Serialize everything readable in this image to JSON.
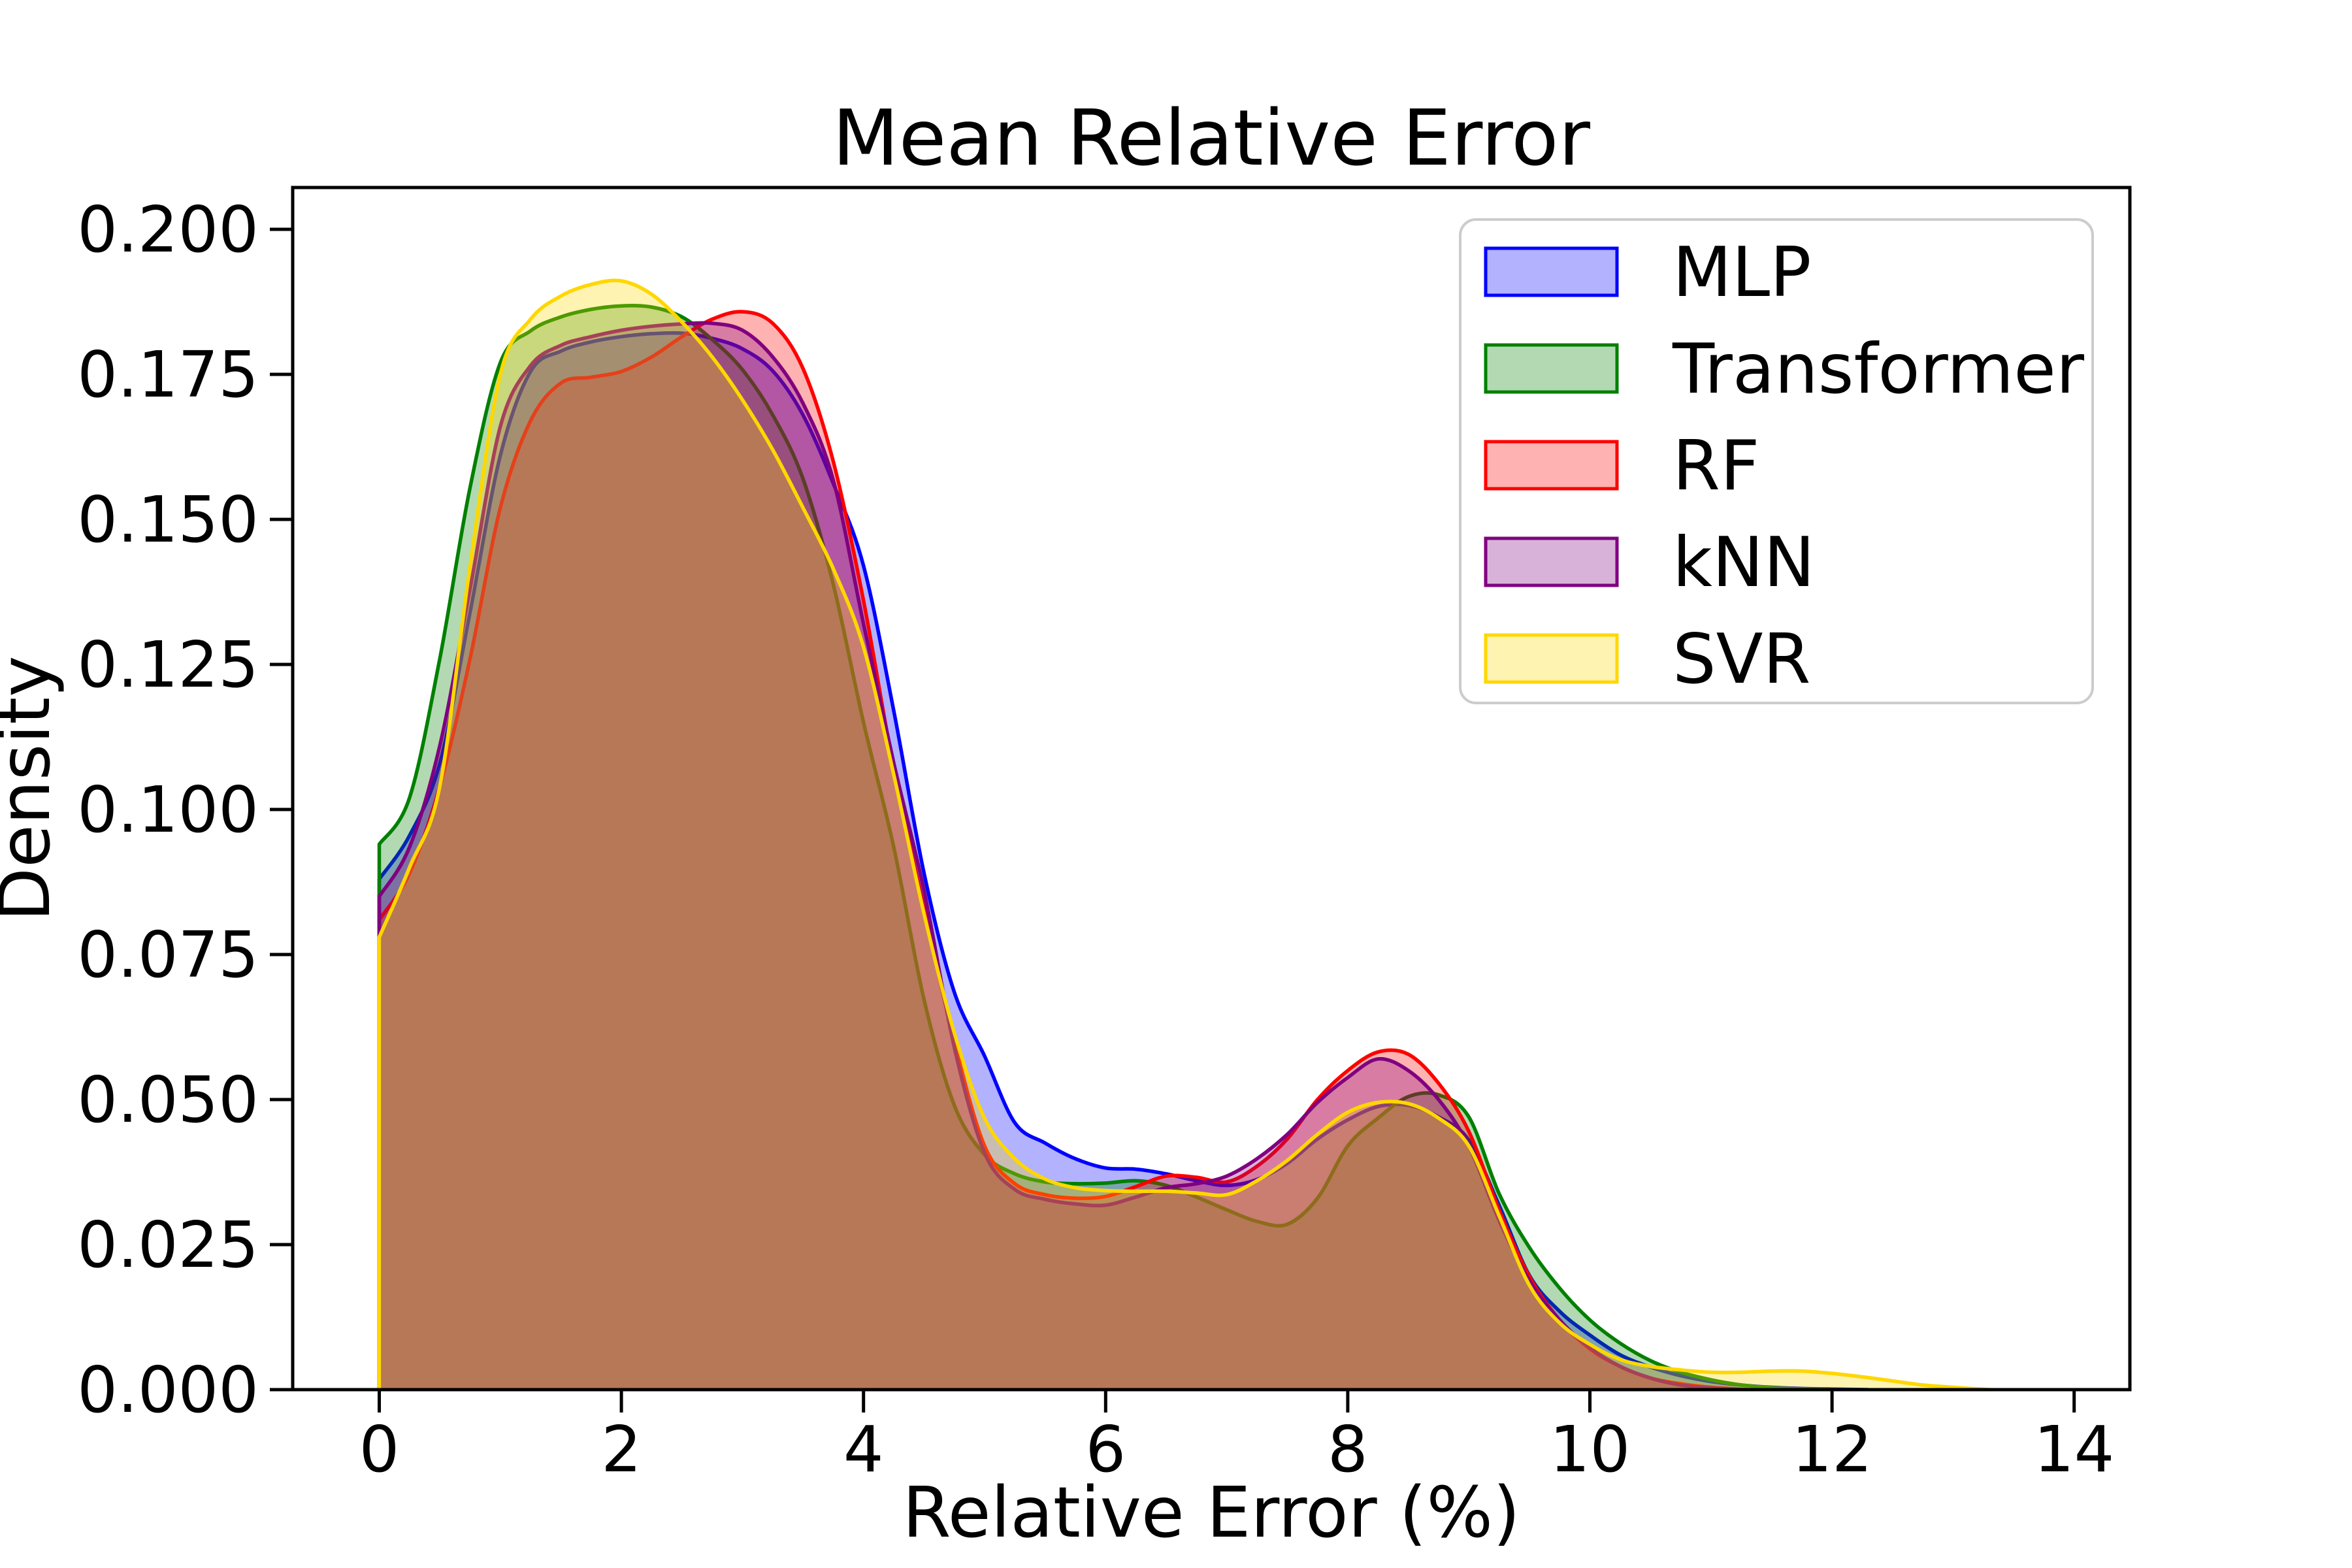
{
  "figure": {
    "background": "#ffffff",
    "spine_color": "#000000",
    "legend_border_color": "#cccccc",
    "legend_background": "#ffffff"
  },
  "chart_data": {
    "type": "area",
    "kind": "kde-density-overlay",
    "title": "Mean Relative Error",
    "xlabel": "Relative Error (%)",
    "ylabel": "Density",
    "grid": false,
    "legend_position": "upper right",
    "xlim": [
      -0.71,
      14.46
    ],
    "ylim": [
      0,
      0.2072
    ],
    "fill_alpha": 0.3,
    "x_ticks": {
      "values": [
        0,
        2,
        4,
        6,
        8,
        10,
        12,
        14
      ],
      "labels": [
        "0",
        "2",
        "4",
        "6",
        "8",
        "10",
        "12",
        "14"
      ]
    },
    "y_ticks": {
      "values": [
        0.0,
        0.025,
        0.05,
        0.075,
        0.1,
        0.125,
        0.15,
        0.175,
        0.2
      ],
      "labels": [
        "0.000",
        "0.025",
        "0.050",
        "0.075",
        "0.100",
        "0.125",
        "0.150",
        "0.175",
        "0.200"
      ]
    },
    "series": [
      {
        "name": "MLP",
        "color": "#0000ff",
        "points": [
          [
            0,
            0.088
          ],
          [
            0.25,
            0.0955
          ],
          [
            0.5,
            0.108
          ],
          [
            0.75,
            0.134
          ],
          [
            1,
            0.161
          ],
          [
            1.25,
            0.1755
          ],
          [
            1.5,
            0.179
          ],
          [
            1.75,
            0.1806
          ],
          [
            2,
            0.1815
          ],
          [
            2.25,
            0.182
          ],
          [
            2.5,
            0.1821
          ],
          [
            2.75,
            0.1812
          ],
          [
            3,
            0.1794
          ],
          [
            3.25,
            0.1756
          ],
          [
            3.5,
            0.168
          ],
          [
            3.75,
            0.1562
          ],
          [
            4,
            0.142
          ],
          [
            4.25,
            0.117
          ],
          [
            4.5,
            0.089
          ],
          [
            4.75,
            0.0685
          ],
          [
            5,
            0.0575
          ],
          [
            5.25,
            0.046
          ],
          [
            5.5,
            0.0425
          ],
          [
            5.75,
            0.0398
          ],
          [
            6,
            0.0382
          ],
          [
            6.25,
            0.038
          ],
          [
            6.5,
            0.0372
          ],
          [
            6.75,
            0.036
          ],
          [
            7,
            0.0352
          ],
          [
            7.25,
            0.0362
          ],
          [
            7.5,
            0.039
          ],
          [
            7.75,
            0.0432
          ],
          [
            8,
            0.0465
          ],
          [
            8.25,
            0.0488
          ],
          [
            8.5,
            0.049
          ],
          [
            8.75,
            0.047
          ],
          [
            9,
            0.043
          ],
          [
            9.25,
            0.0318
          ],
          [
            9.5,
            0.0197
          ],
          [
            9.75,
            0.0135
          ],
          [
            10,
            0.0094
          ],
          [
            10.25,
            0.006
          ],
          [
            10.5,
            0.0039
          ],
          [
            10.75,
            0.0024
          ],
          [
            11,
            0.0014
          ],
          [
            11.25,
            0.0008
          ],
          [
            11.5,
            0.0004
          ],
          [
            11.75,
            0.0002
          ],
          [
            12,
            0.0001
          ],
          [
            12.3,
            0
          ]
        ]
      },
      {
        "name": "Transformer",
        "color": "#008000",
        "points": [
          [
            0,
            0.094
          ],
          [
            0.25,
            0.102
          ],
          [
            0.5,
            0.126
          ],
          [
            0.75,
            0.1555
          ],
          [
            1,
            0.177
          ],
          [
            1.25,
            0.1825
          ],
          [
            1.5,
            0.1849
          ],
          [
            1.75,
            0.1862
          ],
          [
            2,
            0.1868
          ],
          [
            2.25,
            0.1866
          ],
          [
            2.5,
            0.1849
          ],
          [
            2.75,
            0.181
          ],
          [
            3,
            0.1758
          ],
          [
            3.25,
            0.168
          ],
          [
            3.5,
            0.157
          ],
          [
            3.75,
            0.1388
          ],
          [
            4,
            0.115
          ],
          [
            4.25,
            0.0935
          ],
          [
            4.5,
            0.0672
          ],
          [
            4.75,
            0.049
          ],
          [
            5,
            0.0405
          ],
          [
            5.25,
            0.0372
          ],
          [
            5.5,
            0.0358
          ],
          [
            5.75,
            0.0355
          ],
          [
            6,
            0.0356
          ],
          [
            6.25,
            0.036
          ],
          [
            6.5,
            0.0352
          ],
          [
            6.75,
            0.0332
          ],
          [
            7,
            0.031
          ],
          [
            7.25,
            0.029
          ],
          [
            7.5,
            0.0285
          ],
          [
            7.75,
            0.033
          ],
          [
            8,
            0.042
          ],
          [
            8.25,
            0.0468
          ],
          [
            8.5,
            0.0505
          ],
          [
            8.75,
            0.0508
          ],
          [
            9,
            0.047
          ],
          [
            9.25,
            0.0338
          ],
          [
            9.5,
            0.0245
          ],
          [
            9.75,
            0.0175
          ],
          [
            10,
            0.012
          ],
          [
            10.25,
            0.008
          ],
          [
            10.5,
            0.005
          ],
          [
            10.75,
            0.003
          ],
          [
            11,
            0.0017
          ],
          [
            11.25,
            0.0008
          ],
          [
            11.5,
            0.0003
          ],
          [
            11.75,
            0.0001
          ],
          [
            12,
            0
          ]
        ]
      },
      {
        "name": "RF",
        "color": "#ff0000",
        "points": [
          [
            0,
            0.081
          ],
          [
            0.25,
            0.089
          ],
          [
            0.5,
            0.104
          ],
          [
            0.75,
            0.126
          ],
          [
            1,
            0.152
          ],
          [
            1.25,
            0.167
          ],
          [
            1.5,
            0.1735
          ],
          [
            1.75,
            0.1745
          ],
          [
            2,
            0.1755
          ],
          [
            2.25,
            0.178
          ],
          [
            2.5,
            0.1815
          ],
          [
            2.75,
            0.1845
          ],
          [
            3,
            0.1858
          ],
          [
            3.25,
            0.1838
          ],
          [
            3.5,
            0.176
          ],
          [
            3.75,
            0.16
          ],
          [
            4,
            0.136
          ],
          [
            4.25,
            0.107
          ],
          [
            4.5,
            0.083
          ],
          [
            4.75,
            0.06
          ],
          [
            5,
            0.042
          ],
          [
            5.25,
            0.0355
          ],
          [
            5.5,
            0.0336
          ],
          [
            5.75,
            0.033
          ],
          [
            6,
            0.0333
          ],
          [
            6.25,
            0.035
          ],
          [
            6.5,
            0.0368
          ],
          [
            6.75,
            0.0366
          ],
          [
            7,
            0.0358
          ],
          [
            7.25,
            0.0385
          ],
          [
            7.5,
            0.0432
          ],
          [
            7.75,
            0.05
          ],
          [
            8,
            0.055
          ],
          [
            8.25,
            0.0582
          ],
          [
            8.5,
            0.0578
          ],
          [
            8.75,
            0.0528
          ],
          [
            9,
            0.0445
          ],
          [
            9.25,
            0.031
          ],
          [
            9.5,
            0.0195
          ],
          [
            9.75,
            0.012
          ],
          [
            10,
            0.007
          ],
          [
            10.25,
            0.004
          ],
          [
            10.5,
            0.002
          ],
          [
            10.75,
            0.001
          ],
          [
            11,
            0.0004
          ],
          [
            11.3,
            0
          ]
        ]
      },
      {
        "name": "kNN",
        "color": "#800080",
        "points": [
          [
            0,
            0.085
          ],
          [
            0.25,
            0.0935
          ],
          [
            0.5,
            0.111
          ],
          [
            0.75,
            0.138
          ],
          [
            1,
            0.166
          ],
          [
            1.25,
            0.1765
          ],
          [
            1.5,
            0.18
          ],
          [
            1.75,
            0.1815
          ],
          [
            2,
            0.1826
          ],
          [
            2.25,
            0.1833
          ],
          [
            2.5,
            0.1837
          ],
          [
            2.75,
            0.1838
          ],
          [
            3,
            0.1826
          ],
          [
            3.25,
            0.178
          ],
          [
            3.5,
            0.17
          ],
          [
            3.75,
            0.1568
          ],
          [
            4,
            0.132
          ],
          [
            4.25,
            0.108
          ],
          [
            4.5,
            0.086
          ],
          [
            4.75,
            0.059
          ],
          [
            5,
            0.0408
          ],
          [
            5.25,
            0.0345
          ],
          [
            5.5,
            0.0328
          ],
          [
            5.75,
            0.032
          ],
          [
            6,
            0.0318
          ],
          [
            6.25,
            0.0332
          ],
          [
            6.5,
            0.0348
          ],
          [
            6.75,
            0.0355
          ],
          [
            7,
            0.0368
          ],
          [
            7.25,
            0.0398
          ],
          [
            7.5,
            0.044
          ],
          [
            7.75,
            0.0495
          ],
          [
            8,
            0.0538
          ],
          [
            8.25,
            0.057
          ],
          [
            8.5,
            0.055
          ],
          [
            8.75,
            0.05
          ],
          [
            9,
            0.042
          ],
          [
            9.25,
            0.0292
          ],
          [
            9.5,
            0.0188
          ],
          [
            9.75,
            0.012
          ],
          [
            10,
            0.0072
          ],
          [
            10.25,
            0.004
          ],
          [
            10.5,
            0.002
          ],
          [
            10.75,
            0.0008
          ],
          [
            11,
            0.0003
          ],
          [
            11.3,
            0
          ]
        ]
      },
      {
        "name": "SVR",
        "color": "#ffd700",
        "points": [
          [
            0,
            0.078
          ],
          [
            0.25,
            0.09
          ],
          [
            0.5,
            0.104
          ],
          [
            0.75,
            0.142
          ],
          [
            1,
            0.175
          ],
          [
            1.25,
            0.1845
          ],
          [
            1.5,
            0.1885
          ],
          [
            1.75,
            0.1905
          ],
          [
            2,
            0.1911
          ],
          [
            2.25,
            0.1888
          ],
          [
            2.5,
            0.184
          ],
          [
            2.75,
            0.178
          ],
          [
            3,
            0.1706
          ],
          [
            3.25,
            0.162
          ],
          [
            3.5,
            0.152
          ],
          [
            3.75,
            0.1415
          ],
          [
            4,
            0.128
          ],
          [
            4.25,
            0.106
          ],
          [
            4.5,
            0.082
          ],
          [
            4.75,
            0.0615
          ],
          [
            5,
            0.0468
          ],
          [
            5.25,
            0.0398
          ],
          [
            5.5,
            0.0363
          ],
          [
            5.75,
            0.0348
          ],
          [
            6,
            0.0343
          ],
          [
            6.25,
            0.0342
          ],
          [
            6.5,
            0.0342
          ],
          [
            6.75,
            0.0339
          ],
          [
            7,
            0.0336
          ],
          [
            7.25,
            0.036
          ],
          [
            7.5,
            0.0395
          ],
          [
            7.75,
            0.044
          ],
          [
            8,
            0.0478
          ],
          [
            8.25,
            0.0495
          ],
          [
            8.5,
            0.0493
          ],
          [
            8.75,
            0.0468
          ],
          [
            9,
            0.042
          ],
          [
            9.25,
            0.03
          ],
          [
            9.5,
            0.018
          ],
          [
            9.75,
            0.0115
          ],
          [
            10,
            0.0078
          ],
          [
            10.25,
            0.0052
          ],
          [
            10.5,
            0.004
          ],
          [
            10.75,
            0.0034
          ],
          [
            11,
            0.003
          ],
          [
            11.25,
            0.003
          ],
          [
            11.5,
            0.0032
          ],
          [
            11.75,
            0.0032
          ],
          [
            12,
            0.0028
          ],
          [
            12.25,
            0.0022
          ],
          [
            12.5,
            0.0015
          ],
          [
            12.75,
            0.0008
          ],
          [
            13,
            0.0004
          ],
          [
            13.3,
            0
          ]
        ]
      }
    ]
  }
}
